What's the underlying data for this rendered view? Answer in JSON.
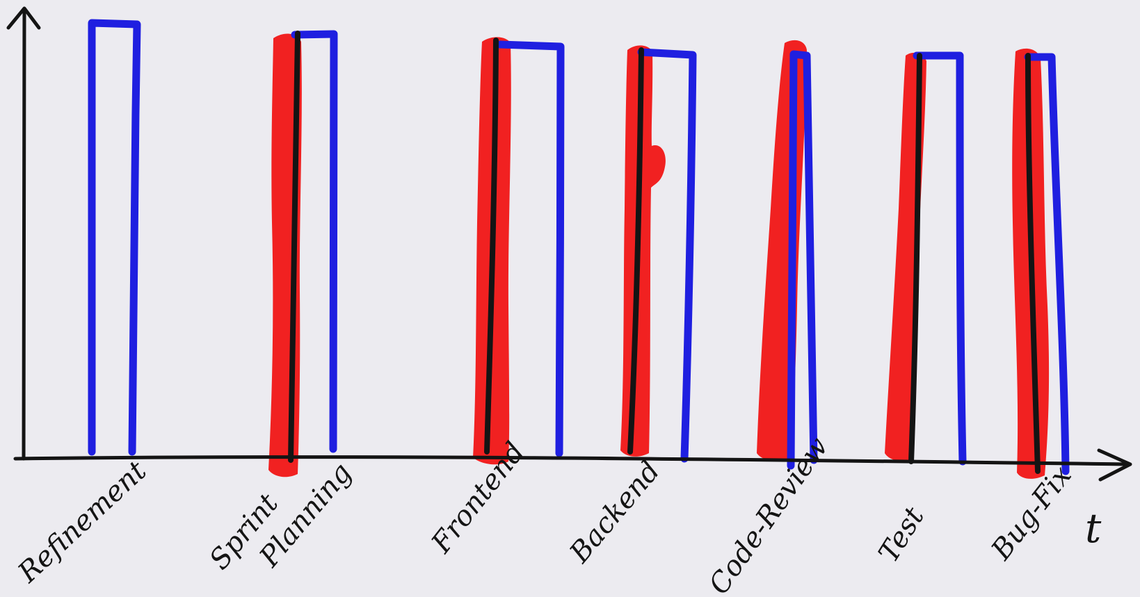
{
  "diagram": {
    "axis_label": "t",
    "colors": {
      "background": "#ecebf0",
      "axis": "#141414",
      "blue_outline": "#1f1fe0",
      "red_marker": "#f01818",
      "black_marker": "#141414"
    },
    "stages": [
      {
        "label": "Refinement",
        "has_red_bar": false
      },
      {
        "label": "Sprint Planning",
        "label_lines": [
          "Sprint",
          "Planning"
        ],
        "has_red_bar": true
      },
      {
        "label": "Frontend",
        "has_red_bar": true
      },
      {
        "label": "Backend",
        "has_red_bar": true
      },
      {
        "label": "Code-Review",
        "has_red_bar": true
      },
      {
        "label": "Test",
        "has_red_bar": true
      },
      {
        "label": "Bug-Fix",
        "has_red_bar": true
      }
    ]
  }
}
